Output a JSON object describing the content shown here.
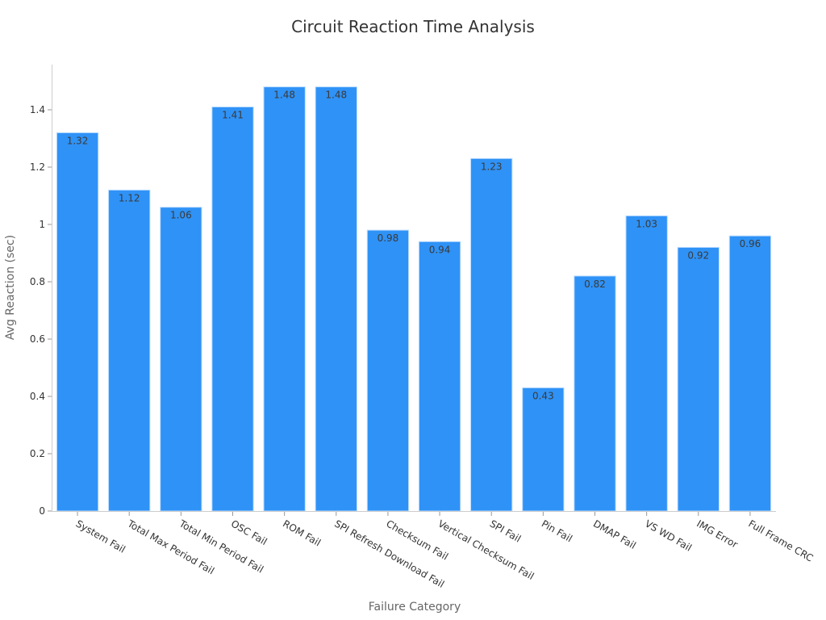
{
  "chart_data": {
    "type": "bar",
    "title": "Circuit Reaction Time Analysis",
    "xlabel": "Failure Category",
    "ylabel": "Avg Reaction (sec)",
    "categories": [
      "System Fail",
      "Total Max Period Fail",
      "Total Min Period Fail",
      "OSC Fail",
      "ROM Fail",
      "SPI Refresh Download Fail",
      "Checksum Fail",
      "Vertical Checksum Fail",
      "SPI Fail",
      "Pin Fail",
      "DMAP Fail",
      "VS WD Fail",
      "IMG Error",
      "Full Frame CRC"
    ],
    "values": [
      1.32,
      1.12,
      1.06,
      1.41,
      1.48,
      1.48,
      0.98,
      0.94,
      1.23,
      0.43,
      0.82,
      1.03,
      0.92,
      0.96
    ],
    "data_labels": [
      "1.32",
      "1.12",
      "1.06",
      "1.41",
      "1.48",
      "1.48",
      "0.98",
      "0.94",
      "1.23",
      "0.43",
      "0.82",
      "1.03",
      "0.92",
      "0.96"
    ],
    "ylim": [
      0,
      1.56
    ],
    "yticks": [
      0,
      0.2,
      0.4,
      0.6,
      0.8,
      1,
      1.2,
      1.4
    ],
    "ytick_labels": [
      "0",
      "0.2",
      "0.4",
      "0.6",
      "0.8",
      "1",
      "1.2",
      "1.4"
    ],
    "bar_color": "#2f92f6",
    "bar_border_color": "#bcdcff",
    "grid": false,
    "legend": "none"
  }
}
